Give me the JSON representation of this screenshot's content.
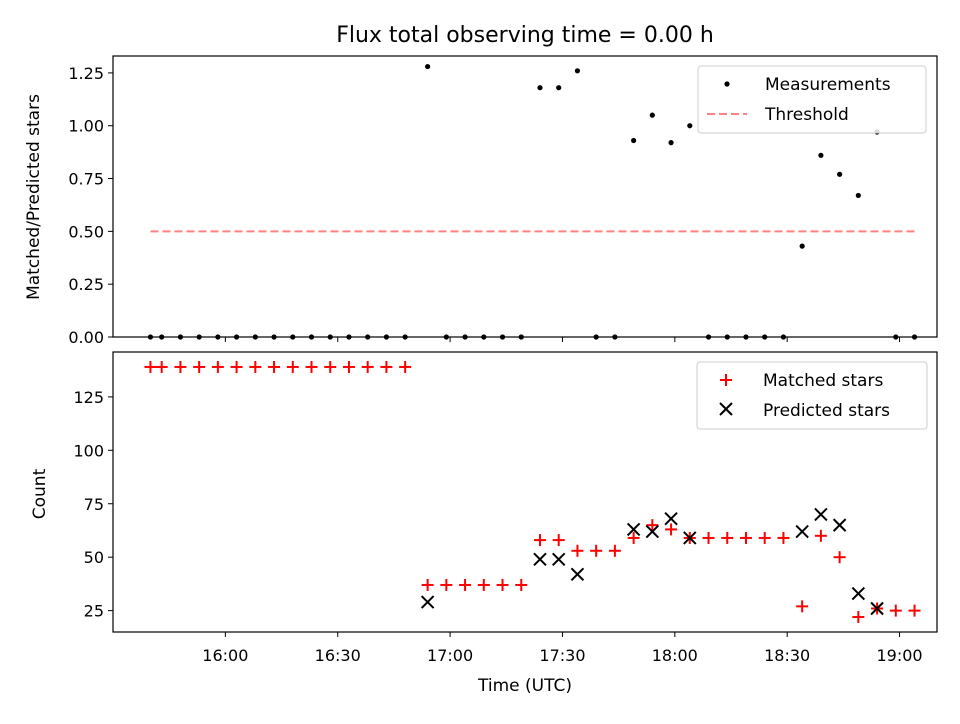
{
  "chart_data": [
    {
      "type": "scatter",
      "title": "Flux total observing time = 0.00 h",
      "ylabel": "Matched/Predicted stars",
      "xlabel": "",
      "xlim": [
        "15:30",
        "19:10"
      ],
      "ylim": [
        0,
        1.33
      ],
      "yticks": [
        0.0,
        0.25,
        0.5,
        0.75,
        1.0,
        1.25
      ],
      "ytick_labels": [
        "0.00",
        "0.25",
        "0.50",
        "0.75",
        "1.00",
        "1.25"
      ],
      "xticks": [
        "16:00",
        "16:30",
        "17:00",
        "17:30",
        "18:00",
        "18:30",
        "19:00"
      ],
      "show_xtick_labels": false,
      "grid": false,
      "legend": "top-right",
      "series": [
        {
          "name": "Measurements",
          "kind": "points",
          "color": "#000000",
          "x": [
            "15:40",
            "15:43",
            "15:48",
            "15:53",
            "15:58",
            "16:03",
            "16:08",
            "16:13",
            "16:18",
            "16:23",
            "16:28",
            "16:33",
            "16:38",
            "16:43",
            "16:48",
            "16:54",
            "16:59",
            "17:04",
            "17:09",
            "17:14",
            "17:19",
            "17:24",
            "17:29",
            "17:34",
            "17:39",
            "17:44",
            "17:49",
            "17:54",
            "17:59",
            "18:04",
            "18:09",
            "18:14",
            "18:19",
            "18:24",
            "18:29",
            "18:34",
            "18:39",
            "18:44",
            "18:49",
            "18:54",
            "18:59",
            "19:04"
          ],
          "y": [
            0,
            0,
            0,
            0,
            0,
            0,
            0,
            0,
            0,
            0,
            0,
            0,
            0,
            0,
            0,
            1.28,
            0,
            0,
            0,
            0,
            0,
            1.18,
            1.18,
            1.26,
            0,
            0,
            0.93,
            1.05,
            0.92,
            1.0,
            0,
            0,
            0,
            0,
            0,
            0.43,
            0.86,
            0.77,
            0.67,
            0.97,
            0,
            0
          ]
        },
        {
          "name": "Threshold",
          "kind": "dashed-line",
          "color": "#ff8080",
          "x": [
            "15:40",
            "19:04"
          ],
          "y": [
            0.5,
            0.5
          ]
        }
      ]
    },
    {
      "type": "scatter",
      "title": "",
      "ylabel": "Count",
      "xlabel": "Time (UTC)",
      "xlim": [
        "15:30",
        "19:10"
      ],
      "ylim": [
        15,
        146
      ],
      "yticks": [
        25,
        50,
        75,
        100,
        125
      ],
      "ytick_labels": [
        "25",
        "50",
        "75",
        "100",
        "125"
      ],
      "xticks": [
        "16:00",
        "16:30",
        "17:00",
        "17:30",
        "18:00",
        "18:30",
        "19:00"
      ],
      "xtick_labels": [
        "16:00",
        "16:30",
        "17:00",
        "17:30",
        "18:00",
        "18:30",
        "19:00"
      ],
      "show_xtick_labels": true,
      "grid": false,
      "legend": "top-right",
      "series": [
        {
          "name": "Matched stars",
          "kind": "plus",
          "color": "#ff0000",
          "x": [
            "15:40",
            "15:43",
            "15:48",
            "15:53",
            "15:58",
            "16:03",
            "16:08",
            "16:13",
            "16:18",
            "16:23",
            "16:28",
            "16:33",
            "16:38",
            "16:43",
            "16:48",
            "16:54",
            "16:59",
            "17:04",
            "17:09",
            "17:14",
            "17:19",
            "17:24",
            "17:29",
            "17:34",
            "17:39",
            "17:44",
            "17:49",
            "17:54",
            "17:59",
            "18:04",
            "18:09",
            "18:14",
            "18:19",
            "18:24",
            "18:29",
            "18:34",
            "18:39",
            "18:44",
            "18:49",
            "18:54",
            "18:59",
            "19:04"
          ],
          "y": [
            139,
            139,
            139,
            139,
            139,
            139,
            139,
            139,
            139,
            139,
            139,
            139,
            139,
            139,
            139,
            37,
            37,
            37,
            37,
            37,
            37,
            58,
            58,
            53,
            53,
            53,
            59,
            65,
            63,
            59,
            59,
            59,
            59,
            59,
            59,
            27,
            60,
            50,
            22,
            26,
            25,
            25
          ]
        },
        {
          "name": "Predicted stars",
          "kind": "x",
          "color": "#000000",
          "x": [
            "16:54",
            "17:24",
            "17:29",
            "17:34",
            "17:49",
            "17:54",
            "17:59",
            "18:04",
            "18:34",
            "18:39",
            "18:44",
            "18:49",
            "18:54"
          ],
          "y": [
            29,
            49,
            49,
            42,
            63,
            62,
            68,
            59,
            62,
            70,
            65,
            33,
            26
          ]
        }
      ]
    }
  ]
}
